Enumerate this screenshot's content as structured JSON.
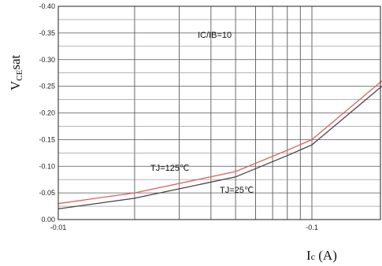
{
  "chart_data": {
    "type": "line",
    "title": "",
    "ylabel": {
      "main": "V",
      "sub": "CE",
      "suffix": "sat"
    },
    "xlabel": {
      "main": "I",
      "sub": "c",
      "suffix": " (A)"
    },
    "xscale": "log",
    "xlim": [
      0.01,
      0.2
    ],
    "ylim": [
      0.0,
      -0.4
    ],
    "grid": true,
    "x_tick_labels": [
      {
        "x": 0.01,
        "label": "-0.01"
      },
      {
        "x": 0.1,
        "label": "-0.1"
      }
    ],
    "y_tick_labels": [
      {
        "y": 0.0,
        "label": "0.00"
      },
      {
        "y": -0.05,
        "label": "-0.05"
      },
      {
        "y": -0.1,
        "label": "-0.10"
      },
      {
        "y": -0.15,
        "label": "-0.15"
      },
      {
        "y": -0.2,
        "label": "-0.20"
      },
      {
        "y": -0.25,
        "label": "-0.25"
      },
      {
        "y": -0.3,
        "label": "-0.30"
      },
      {
        "y": -0.35,
        "label": "-0.35"
      },
      {
        "y": -0.4,
        "label": "-0.40"
      }
    ],
    "annotations": {
      "condition": "IC/IB=10",
      "tj125": "TJ=125℃",
      "tj25": "TJ=25℃"
    },
    "series": [
      {
        "name": "TJ=125℃",
        "color": "#e06060",
        "points": [
          {
            "x": 0.01,
            "y": -0.03
          },
          {
            "x": 0.02,
            "y": -0.05
          },
          {
            "x": 0.05,
            "y": -0.09
          },
          {
            "x": 0.08,
            "y": -0.13
          },
          {
            "x": 0.1,
            "y": -0.15
          },
          {
            "x": 0.2,
            "y": -0.27
          }
        ]
      },
      {
        "name": "TJ=25℃",
        "color": "#444444",
        "points": [
          {
            "x": 0.01,
            "y": -0.02
          },
          {
            "x": 0.02,
            "y": -0.04
          },
          {
            "x": 0.05,
            "y": -0.08
          },
          {
            "x": 0.08,
            "y": -0.12
          },
          {
            "x": 0.1,
            "y": -0.14
          },
          {
            "x": 0.2,
            "y": -0.26
          }
        ]
      }
    ]
  }
}
